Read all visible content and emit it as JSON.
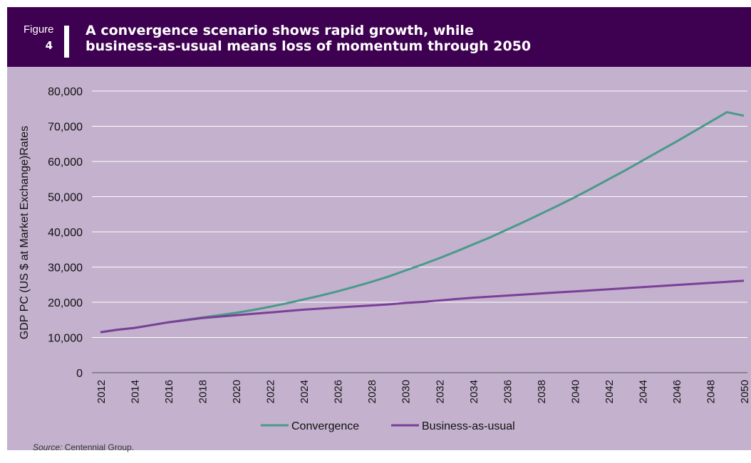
{
  "figure": {
    "label": "Figure",
    "number": "4",
    "title_line1": "A convergence scenario shows rapid growth, while",
    "title_line2": "business-as-usual means loss of momentum through 2050"
  },
  "source": {
    "prefix": "Source:",
    "text": " Centennial Group."
  },
  "colors": {
    "header_bg": "#3e0050",
    "plot_bg": "#c3b1cd",
    "convergence": "#4a9a8a",
    "business_as_usual": "#7a3f98"
  },
  "chart_data": {
    "type": "line",
    "title": "A convergence scenario shows rapid growth, while business-as-usual means loss of momentum through 2050",
    "xlabel": "",
    "ylabel": "GDP PC (US $ at Market Exchange)Rates",
    "x": [
      2012,
      2013,
      2014,
      2015,
      2016,
      2017,
      2018,
      2019,
      2020,
      2021,
      2022,
      2023,
      2024,
      2025,
      2026,
      2027,
      2028,
      2029,
      2030,
      2031,
      2032,
      2033,
      2034,
      2035,
      2036,
      2037,
      2038,
      2039,
      2040,
      2041,
      2042,
      2043,
      2044,
      2045,
      2046,
      2047,
      2048,
      2049,
      2050
    ],
    "x_tick_labels": [
      "2012",
      "2014",
      "2016",
      "2018",
      "2020",
      "2022",
      "2024",
      "2026",
      "2028",
      "2030",
      "2032",
      "2034",
      "2036",
      "2038",
      "2040",
      "2042",
      "2044",
      "2046",
      "2048",
      "2050"
    ],
    "y_tick_labels": [
      "0",
      "10,000",
      "20,000",
      "30,000",
      "40,000",
      "50,000",
      "60,000",
      "70,000",
      "80,000"
    ],
    "ylim": [
      0,
      80000
    ],
    "grid": true,
    "legend_position": "bottom",
    "series": [
      {
        "name": "Convergence",
        "color": "#4a9a8a",
        "values": [
          11500,
          12200,
          12700,
          13500,
          14300,
          15000,
          15700,
          16300,
          17000,
          17800,
          18700,
          19700,
          20800,
          21900,
          23100,
          24400,
          25800,
          27300,
          29000,
          30700,
          32500,
          34400,
          36400,
          38400,
          40600,
          42800,
          45100,
          47400,
          49800,
          52300,
          54900,
          57500,
          60200,
          62900,
          65600,
          68400,
          71200,
          74000,
          73000
        ]
      },
      {
        "name": "Business-as-usual",
        "color": "#7a3f98",
        "values": [
          11500,
          12200,
          12700,
          13500,
          14300,
          14900,
          15500,
          15900,
          16300,
          16700,
          17100,
          17500,
          17900,
          18200,
          18500,
          18800,
          19100,
          19400,
          19800,
          20100,
          20500,
          20900,
          21300,
          21600,
          21900,
          22200,
          22500,
          22800,
          23100,
          23400,
          23700,
          24000,
          24300,
          24600,
          24900,
          25200,
          25500,
          25800,
          26100
        ]
      }
    ]
  }
}
